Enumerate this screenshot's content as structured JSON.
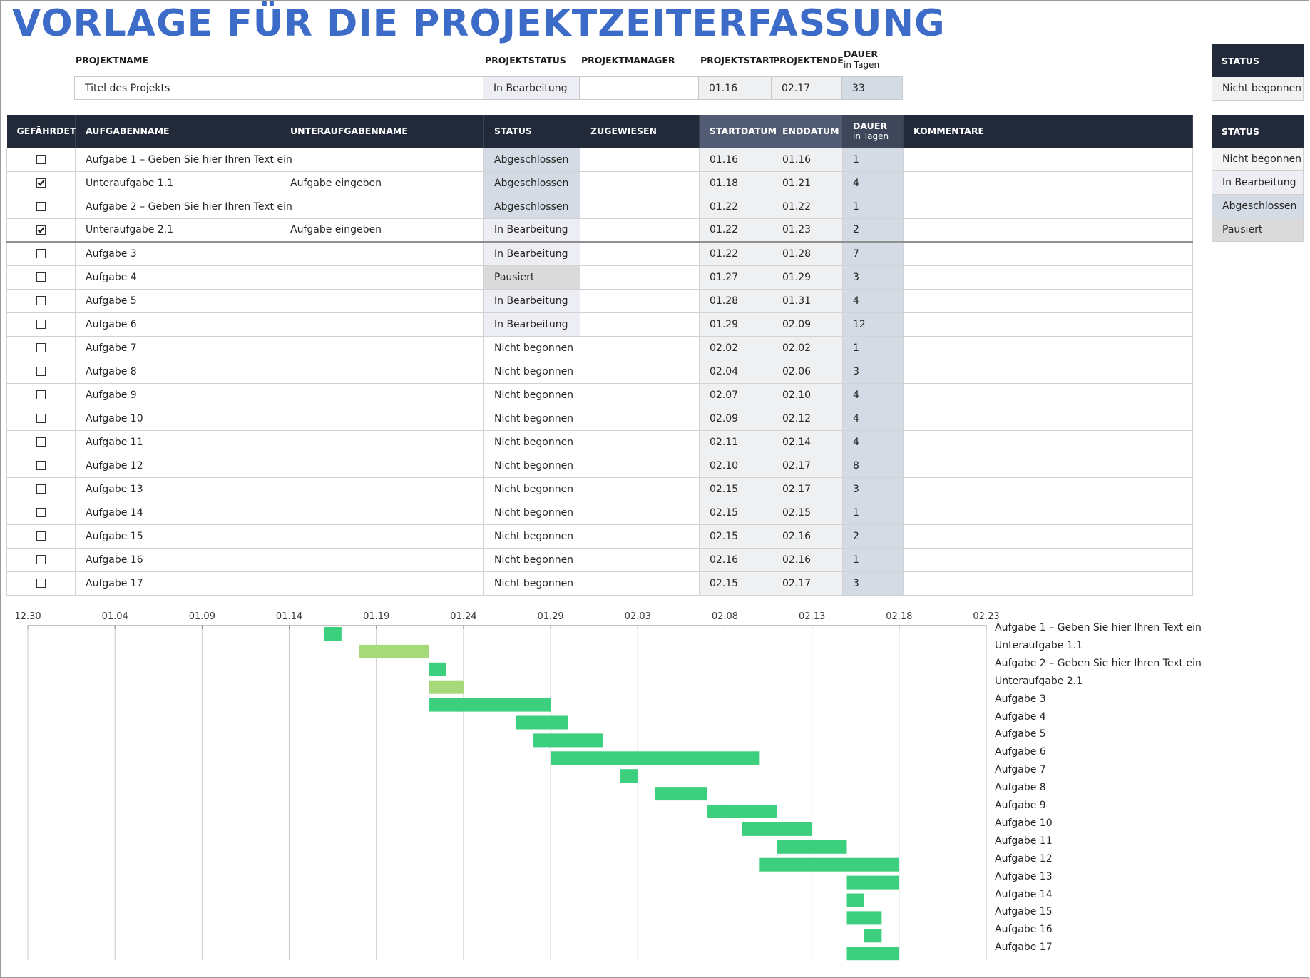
{
  "title": "VORLAGE FÜR DIE PROJEKTZEITERFASSUNG",
  "project": {
    "headers": {
      "name": "PROJEKTNAME",
      "status": "PROJEKTSTATUS",
      "manager": "PROJEKTMANAGER",
      "start": "PROJEKTSTART",
      "end": "PROJEKTENDE",
      "duration": "DAUER",
      "duration_unit": "in Tagen"
    },
    "values": {
      "name": "Titel des Projekts",
      "status": "In Bearbeitung",
      "manager": "",
      "start": "01.16",
      "end": "02.17",
      "duration": "33"
    }
  },
  "status_box_top": {
    "header": "STATUS",
    "value": "Nicht begonnen"
  },
  "status_box_legend": {
    "header": "STATUS",
    "items": [
      "Nicht begonnen",
      "In Bearbeitung",
      "Abgeschlossen",
      "Pausiert"
    ]
  },
  "task_table": {
    "headers": {
      "at_risk": "GEFÄHRDET",
      "task": "AUFGABENNAME",
      "subtask": "UNTERAUFGABENNAME",
      "status": "STATUS",
      "assigned": "ZUGEWIESEN",
      "start": "STARTDATUM",
      "end": "ENDDATUM",
      "duration": "DAUER",
      "duration_unit": "in Tagen",
      "comments": "KOMMENTARE"
    },
    "rows": [
      {
        "at_risk": false,
        "task": "Aufgabe 1 – Geben Sie hier Ihren Text ein",
        "subtask": "",
        "status": "Abgeschlossen",
        "assigned": "",
        "start": "01.16",
        "end": "01.16",
        "duration": "1",
        "comments": ""
      },
      {
        "at_risk": true,
        "task": "Unteraufgabe 1.1",
        "subtask": "Aufgabe eingeben",
        "status": "Abgeschlossen",
        "assigned": "",
        "start": "01.18",
        "end": "01.21",
        "duration": "4",
        "comments": ""
      },
      {
        "at_risk": false,
        "task": "Aufgabe 2 – Geben Sie hier Ihren Text ein",
        "subtask": "",
        "status": "Abgeschlossen",
        "assigned": "",
        "start": "01.22",
        "end": "01.22",
        "duration": "1",
        "comments": ""
      },
      {
        "at_risk": true,
        "task": "Unteraufgabe 2.1",
        "subtask": "Aufgabe eingeben",
        "status": "In Bearbeitung",
        "assigned": "",
        "start": "01.22",
        "end": "01.23",
        "duration": "2",
        "comments": ""
      },
      {
        "at_risk": false,
        "task": "Aufgabe 3",
        "subtask": "",
        "status": "In Bearbeitung",
        "assigned": "",
        "start": "01.22",
        "end": "01.28",
        "duration": "7",
        "comments": ""
      },
      {
        "at_risk": false,
        "task": "Aufgabe 4",
        "subtask": "",
        "status": "Pausiert",
        "assigned": "",
        "start": "01.27",
        "end": "01.29",
        "duration": "3",
        "comments": ""
      },
      {
        "at_risk": false,
        "task": "Aufgabe 5",
        "subtask": "",
        "status": "In Bearbeitung",
        "assigned": "",
        "start": "01.28",
        "end": "01.31",
        "duration": "4",
        "comments": ""
      },
      {
        "at_risk": false,
        "task": "Aufgabe 6",
        "subtask": "",
        "status": "In Bearbeitung",
        "assigned": "",
        "start": "01.29",
        "end": "02.09",
        "duration": "12",
        "comments": ""
      },
      {
        "at_risk": false,
        "task": "Aufgabe 7",
        "subtask": "",
        "status": "Nicht begonnen",
        "assigned": "",
        "start": "02.02",
        "end": "02.02",
        "duration": "1",
        "comments": ""
      },
      {
        "at_risk": false,
        "task": "Aufgabe 8",
        "subtask": "",
        "status": "Nicht begonnen",
        "assigned": "",
        "start": "02.04",
        "end": "02.06",
        "duration": "3",
        "comments": ""
      },
      {
        "at_risk": false,
        "task": "Aufgabe 9",
        "subtask": "",
        "status": "Nicht begonnen",
        "assigned": "",
        "start": "02.07",
        "end": "02.10",
        "duration": "4",
        "comments": ""
      },
      {
        "at_risk": false,
        "task": "Aufgabe 10",
        "subtask": "",
        "status": "Nicht begonnen",
        "assigned": "",
        "start": "02.09",
        "end": "02.12",
        "duration": "4",
        "comments": ""
      },
      {
        "at_risk": false,
        "task": "Aufgabe 11",
        "subtask": "",
        "status": "Nicht begonnen",
        "assigned": "",
        "start": "02.11",
        "end": "02.14",
        "duration": "4",
        "comments": ""
      },
      {
        "at_risk": false,
        "task": "Aufgabe 12",
        "subtask": "",
        "status": "Nicht begonnen",
        "assigned": "",
        "start": "02.10",
        "end": "02.17",
        "duration": "8",
        "comments": ""
      },
      {
        "at_risk": false,
        "task": "Aufgabe 13",
        "subtask": "",
        "status": "Nicht begonnen",
        "assigned": "",
        "start": "02.15",
        "end": "02.17",
        "duration": "3",
        "comments": ""
      },
      {
        "at_risk": false,
        "task": "Aufgabe 14",
        "subtask": "",
        "status": "Nicht begonnen",
        "assigned": "",
        "start": "02.15",
        "end": "02.15",
        "duration": "1",
        "comments": ""
      },
      {
        "at_risk": false,
        "task": "Aufgabe 15",
        "subtask": "",
        "status": "Nicht begonnen",
        "assigned": "",
        "start": "02.15",
        "end": "02.16",
        "duration": "2",
        "comments": ""
      },
      {
        "at_risk": false,
        "task": "Aufgabe 16",
        "subtask": "",
        "status": "Nicht begonnen",
        "assigned": "",
        "start": "02.16",
        "end": "02.16",
        "duration": "1",
        "comments": ""
      },
      {
        "at_risk": false,
        "task": "Aufgabe 17",
        "subtask": "",
        "status": "Nicht begonnen",
        "assigned": "",
        "start": "02.15",
        "end": "02.17",
        "duration": "3",
        "comments": ""
      }
    ]
  },
  "colors": {
    "title": "#3d6cc8",
    "header_bg": "#222a3a",
    "bar": "#3ccf7e",
    "bar_light": "#a6d97a",
    "gridline": "#c8c8c8"
  },
  "chart_data": {
    "type": "bar",
    "orientation": "horizontal-gantt",
    "x_ticks": [
      "12.30",
      "01.04",
      "01.09",
      "01.14",
      "01.19",
      "01.24",
      "01.29",
      "02.03",
      "02.08",
      "02.13",
      "02.18",
      "02.23"
    ],
    "x_domain": [
      "12.30",
      "02.23"
    ],
    "grid": true,
    "tasks": [
      {
        "label": "Aufgabe 1 – Geben Sie hier Ihren Text ein",
        "start": "01.16",
        "end": "01.16",
        "duration": 1
      },
      {
        "label": "Unteraufgabe 1.1",
        "start": "01.18",
        "end": "01.21",
        "duration": 4,
        "highlight": true
      },
      {
        "label": "Aufgabe 2 – Geben Sie hier Ihren Text ein",
        "start": "01.22",
        "end": "01.22",
        "duration": 1
      },
      {
        "label": "Unteraufgabe 2.1",
        "start": "01.22",
        "end": "01.23",
        "duration": 2,
        "highlight": true
      },
      {
        "label": "Aufgabe 3",
        "start": "01.22",
        "end": "01.28",
        "duration": 7
      },
      {
        "label": "Aufgabe 4",
        "start": "01.27",
        "end": "01.29",
        "duration": 3
      },
      {
        "label": "Aufgabe 5",
        "start": "01.28",
        "end": "01.31",
        "duration": 4
      },
      {
        "label": "Aufgabe 6",
        "start": "01.29",
        "end": "02.09",
        "duration": 12
      },
      {
        "label": "Aufgabe 7",
        "start": "02.02",
        "end": "02.02",
        "duration": 1
      },
      {
        "label": "Aufgabe 8",
        "start": "02.04",
        "end": "02.06",
        "duration": 3
      },
      {
        "label": "Aufgabe 9",
        "start": "02.07",
        "end": "02.10",
        "duration": 4
      },
      {
        "label": "Aufgabe 10",
        "start": "02.09",
        "end": "02.12",
        "duration": 4
      },
      {
        "label": "Aufgabe 11",
        "start": "02.11",
        "end": "02.14",
        "duration": 4
      },
      {
        "label": "Aufgabe 12",
        "start": "02.10",
        "end": "02.17",
        "duration": 8
      },
      {
        "label": "Aufgabe 13",
        "start": "02.15",
        "end": "02.17",
        "duration": 3
      },
      {
        "label": "Aufgabe 14",
        "start": "02.15",
        "end": "02.15",
        "duration": 1
      },
      {
        "label": "Aufgabe 15",
        "start": "02.15",
        "end": "02.16",
        "duration": 2
      },
      {
        "label": "Aufgabe 16",
        "start": "02.16",
        "end": "02.16",
        "duration": 1
      },
      {
        "label": "Aufgabe 17",
        "start": "02.15",
        "end": "02.17",
        "duration": 3
      }
    ]
  }
}
